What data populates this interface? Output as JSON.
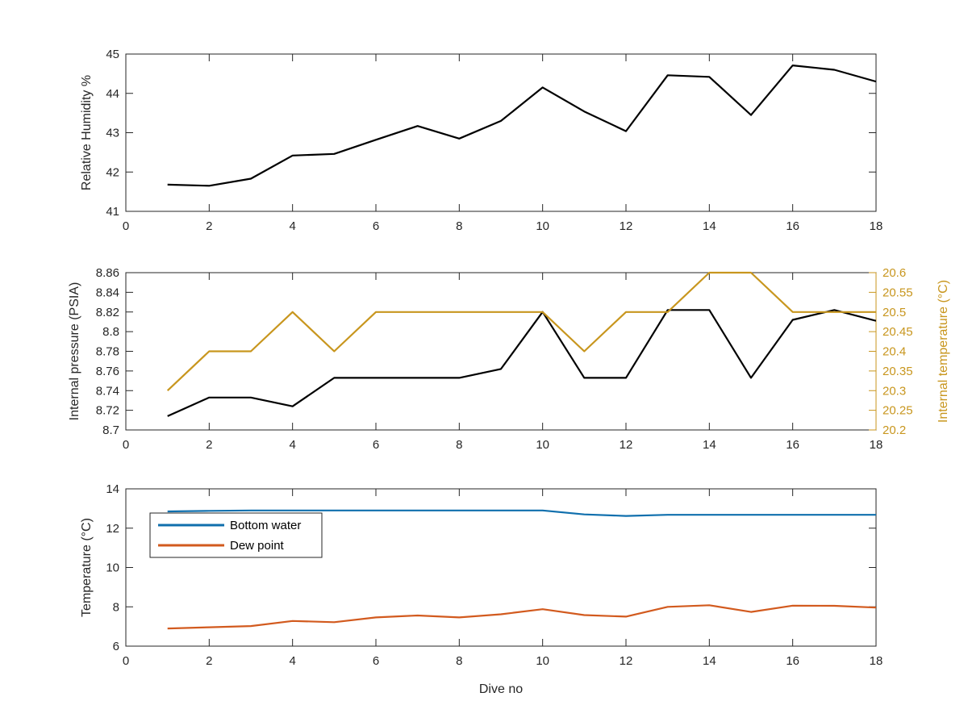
{
  "chart_data": [
    {
      "type": "line",
      "title": "",
      "xlabel": "",
      "ylabel": "Relative Humidity %",
      "xlim": [
        0,
        18
      ],
      "ylim": [
        41,
        45
      ],
      "xticks": [
        "0",
        "2",
        "4",
        "6",
        "8",
        "10",
        "12",
        "14",
        "16",
        "18"
      ],
      "yticks": [
        "41",
        "42",
        "43",
        "44",
        "45"
      ],
      "grid": false,
      "color": "#000000",
      "x": [
        1,
        2,
        3,
        4,
        5,
        6,
        7,
        8,
        9,
        10,
        11,
        12,
        13,
        14,
        15,
        16,
        17,
        18
      ],
      "values": [
        41.68,
        41.65,
        41.83,
        42.42,
        42.46,
        42.82,
        43.17,
        42.85,
        43.3,
        44.15,
        43.54,
        43.04,
        44.46,
        44.42,
        43.45,
        44.71,
        44.6,
        44.3
      ]
    },
    {
      "type": "line",
      "title": "",
      "xlabel": "",
      "ylabel": "Internal pressure (PSIA)",
      "ylabel_right": "Internal temperature (°C)",
      "xlim": [
        0,
        18
      ],
      "ylim": [
        8.7,
        8.86
      ],
      "ylim_right": [
        20.2,
        20.6
      ],
      "xticks": [
        "0",
        "2",
        "4",
        "6",
        "8",
        "10",
        "12",
        "14",
        "16",
        "18"
      ],
      "yticks": [
        "8.7",
        "8.72",
        "8.74",
        "8.76",
        "8.78",
        "8.8",
        "8.82",
        "8.84",
        "8.86"
      ],
      "yticks_right": [
        "20.2",
        "20.25",
        "20.3",
        "20.35",
        "20.4",
        "20.45",
        "20.5",
        "20.55",
        "20.6"
      ],
      "grid": false,
      "x": [
        1,
        2,
        3,
        4,
        5,
        6,
        7,
        8,
        9,
        10,
        11,
        12,
        13,
        14,
        15,
        16,
        17,
        18
      ],
      "series": [
        {
          "axis": "left",
          "color": "#000000",
          "values": [
            8.714,
            8.733,
            8.733,
            8.724,
            8.753,
            8.753,
            8.753,
            8.753,
            8.762,
            8.82,
            8.753,
            8.753,
            8.822,
            8.822,
            8.753,
            8.812,
            8.822,
            8.811
          ]
        },
        {
          "axis": "right",
          "color": "#c8961e",
          "values": [
            20.3,
            20.4,
            20.4,
            20.5,
            20.4,
            20.5,
            20.5,
            20.5,
            20.5,
            20.5,
            20.4,
            20.5,
            20.5,
            20.6,
            20.6,
            20.5,
            20.5,
            20.5
          ]
        }
      ]
    },
    {
      "type": "line",
      "title": "",
      "xlabel": "Dive no",
      "ylabel": "Temperature (°C)",
      "xlim": [
        0,
        18
      ],
      "ylim": [
        6,
        14
      ],
      "xticks": [
        "0",
        "2",
        "4",
        "6",
        "8",
        "10",
        "12",
        "14",
        "16",
        "18"
      ],
      "yticks": [
        "6",
        "8",
        "10",
        "12",
        "14"
      ],
      "grid": false,
      "legend": "top-left",
      "x": [
        1,
        2,
        3,
        4,
        5,
        6,
        7,
        8,
        9,
        10,
        11,
        12,
        13,
        14,
        15,
        16,
        17,
        18
      ],
      "series": [
        {
          "name": "Bottom water",
          "color": "#0f6fad",
          "values": [
            12.85,
            12.88,
            12.9,
            12.9,
            12.9,
            12.9,
            12.9,
            12.9,
            12.9,
            12.9,
            12.7,
            12.62,
            12.68,
            12.68,
            12.68,
            12.68,
            12.68,
            12.68
          ]
        },
        {
          "name": "Dew point",
          "color": "#d25a1e",
          "values": [
            6.9,
            6.96,
            7.02,
            7.28,
            7.22,
            7.46,
            7.56,
            7.46,
            7.62,
            7.88,
            7.58,
            7.5,
            8.0,
            8.08,
            7.74,
            8.06,
            8.05,
            7.96
          ]
        }
      ]
    }
  ]
}
